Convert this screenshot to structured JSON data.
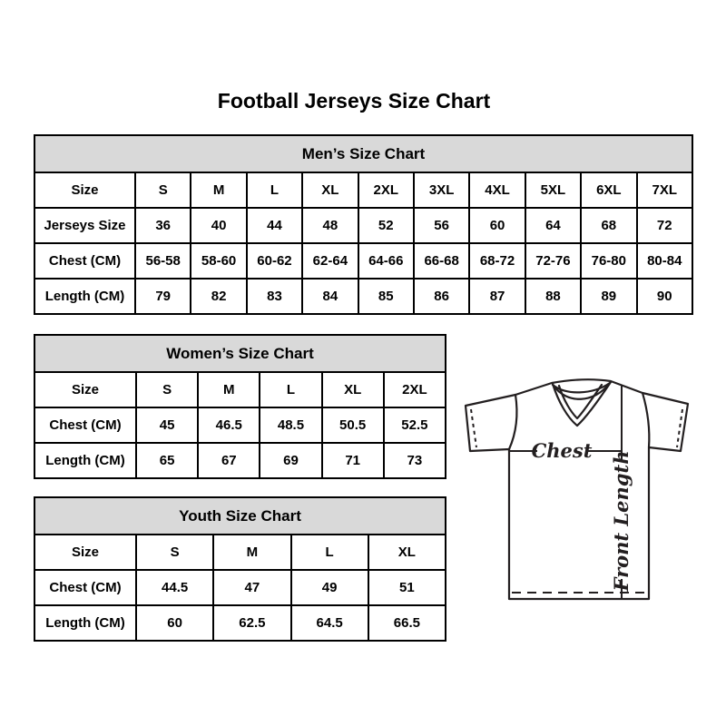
{
  "page": {
    "title": "Football Jerseys Size Chart",
    "background_color": "#ffffff",
    "table_header_color": "#d9d9d9",
    "line_color": "#231f20"
  },
  "tables": {
    "men": {
      "title": "Men’s Size Chart",
      "rows": [
        {
          "label": "Size",
          "values": [
            "S",
            "M",
            "L",
            "XL",
            "2XL",
            "3XL",
            "4XL",
            "5XL",
            "6XL",
            "7XL"
          ]
        },
        {
          "label": "Jerseys Size",
          "values": [
            "36",
            "40",
            "44",
            "48",
            "52",
            "56",
            "60",
            "64",
            "68",
            "72"
          ]
        },
        {
          "label": "Chest (CM)",
          "values": [
            "56-58",
            "58-60",
            "60-62",
            "62-64",
            "64-66",
            "66-68",
            "68-72",
            "72-76",
            "76-80",
            "80-84"
          ]
        },
        {
          "label": "Length (CM)",
          "values": [
            "79",
            "82",
            "83",
            "84",
            "85",
            "86",
            "87",
            "88",
            "89",
            "90"
          ]
        }
      ]
    },
    "women": {
      "title": "Women’s Size Chart",
      "rows": [
        {
          "label": "Size",
          "values": [
            "S",
            "M",
            "L",
            "XL",
            "2XL"
          ]
        },
        {
          "label": "Chest (CM)",
          "values": [
            "45",
            "46.5",
            "48.5",
            "50.5",
            "52.5"
          ]
        },
        {
          "label": "Length (CM)",
          "values": [
            "65",
            "67",
            "69",
            "71",
            "73"
          ]
        }
      ]
    },
    "youth": {
      "title": "Youth Size Chart",
      "rows": [
        {
          "label": "Size",
          "values": [
            "S",
            "M",
            "L",
            "XL"
          ]
        },
        {
          "label": "Chest (CM)",
          "values": [
            "44.5",
            "47",
            "49",
            "51"
          ]
        },
        {
          "label": "Length (CM)",
          "values": [
            "60",
            "62.5",
            "64.5",
            "66.5"
          ]
        }
      ]
    }
  },
  "diagram": {
    "chest_label": "Chest",
    "front_length_label": "Front Length"
  },
  "chart_data": [
    {
      "type": "table",
      "title": "Men’s Size Chart",
      "columns": [
        "Size",
        "S",
        "M",
        "L",
        "XL",
        "2XL",
        "3XL",
        "4XL",
        "5XL",
        "6XL",
        "7XL"
      ],
      "rows": [
        [
          "Jerseys Size",
          36,
          40,
          44,
          48,
          52,
          56,
          60,
          64,
          68,
          72
        ],
        [
          "Chest (CM)",
          "56-58",
          "58-60",
          "60-62",
          "62-64",
          "64-66",
          "66-68",
          "68-72",
          "72-76",
          "76-80",
          "80-84"
        ],
        [
          "Length (CM)",
          79,
          82,
          83,
          84,
          85,
          86,
          87,
          88,
          89,
          90
        ]
      ]
    },
    {
      "type": "table",
      "title": "Women’s Size Chart",
      "columns": [
        "Size",
        "S",
        "M",
        "L",
        "XL",
        "2XL"
      ],
      "rows": [
        [
          "Chest (CM)",
          45,
          46.5,
          48.5,
          50.5,
          52.5
        ],
        [
          "Length (CM)",
          65,
          67,
          69,
          71,
          73
        ]
      ]
    },
    {
      "type": "table",
      "title": "Youth Size Chart",
      "columns": [
        "Size",
        "S",
        "M",
        "L",
        "XL"
      ],
      "rows": [
        [
          "Chest (CM)",
          44.5,
          47,
          49,
          51
        ],
        [
          "Length (CM)",
          60,
          62.5,
          64.5,
          66.5
        ]
      ]
    }
  ]
}
